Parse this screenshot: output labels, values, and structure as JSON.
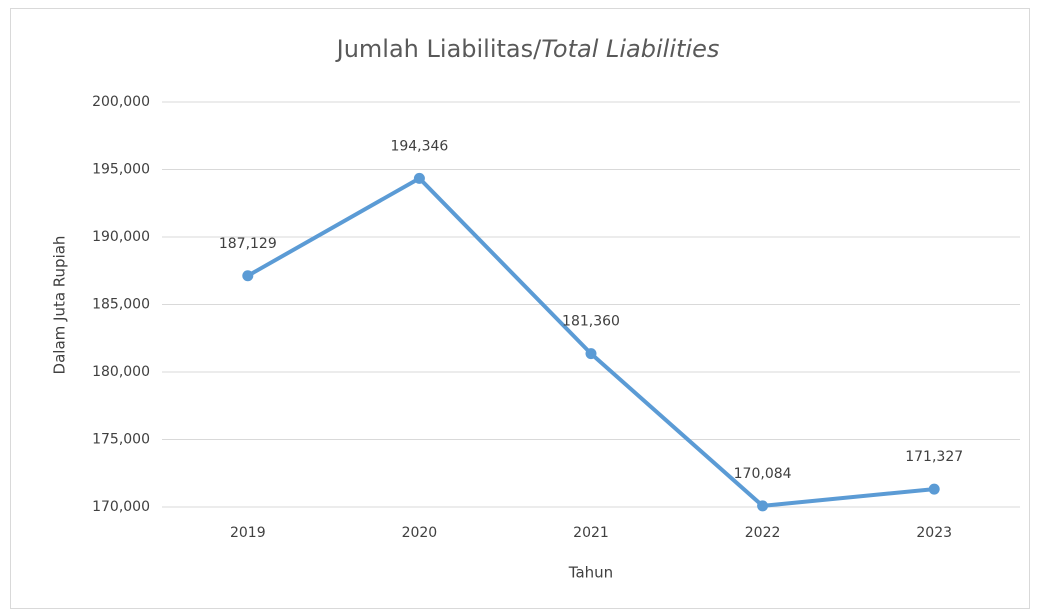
{
  "chart_data": {
    "type": "line",
    "title": [
      "Jumlah Liabilitas/",
      "Total Liabilities"
    ],
    "x_label": "Tahun",
    "y_label": "Dalam Juta Rupiah",
    "categories": [
      "2019",
      "2020",
      "2021",
      "2022",
      "2023"
    ],
    "series": [
      {
        "name": "Jumlah Liabilitas",
        "color": "#5b9bd5",
        "values": [
          187129,
          194346,
          181360,
          170084,
          171327
        ],
        "value_labels": [
          "187,129",
          "194,346",
          "181,360",
          "170,084",
          "171,327"
        ]
      }
    ],
    "ylim": [
      170000,
      200000
    ],
    "yticks": [
      {
        "value": 170000,
        "label": "170,000"
      },
      {
        "value": 175000,
        "label": "175,000"
      },
      {
        "value": 180000,
        "label": "180,000"
      },
      {
        "value": 185000,
        "label": "185,000"
      },
      {
        "value": 190000,
        "label": "190,000"
      },
      {
        "value": 195000,
        "label": "195,000"
      },
      {
        "value": 200000,
        "label": "200,000"
      }
    ],
    "grid": true
  }
}
